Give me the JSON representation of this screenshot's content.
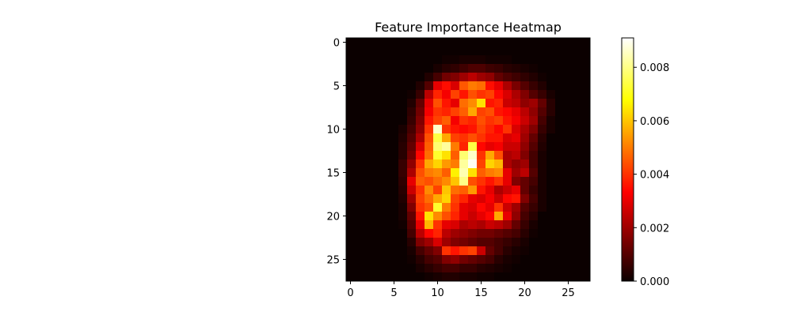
{
  "chart_data": {
    "type": "heatmap",
    "title": "Feature Importance Heatmap",
    "xlabel": "",
    "ylabel": "",
    "rows": 28,
    "cols": 28,
    "colormap": "hot",
    "x_ticks": [
      "0",
      "5",
      "10",
      "15",
      "20",
      "25"
    ],
    "y_ticks": [
      "0",
      "5",
      "10",
      "15",
      "20",
      "25"
    ],
    "colorbar": {
      "vmin": 0.0,
      "vmax": 0.0091,
      "ticks": [
        "0.000",
        "0.002",
        "0.004",
        "0.006",
        "0.008"
      ],
      "tick_values": [
        0.0,
        0.002,
        0.004,
        0.006,
        0.008
      ]
    },
    "values": [
      [
        0,
        0,
        0,
        0,
        0,
        0,
        0,
        0,
        0,
        0,
        0,
        0,
        0,
        0,
        0,
        0,
        0,
        0,
        0,
        0,
        0,
        0,
        0,
        0,
        0,
        0,
        0,
        0
      ],
      [
        0,
        0,
        0,
        0,
        0,
        0,
        0,
        0,
        0,
        0,
        0,
        0,
        0,
        0,
        0,
        0,
        0,
        0,
        0,
        0,
        0,
        0,
        0,
        0,
        0,
        0,
        0,
        0
      ],
      [
        0,
        0,
        0,
        0,
        0,
        0,
        0,
        0,
        0,
        0,
        0,
        0.0001,
        0.0001,
        0.0002,
        0.0002,
        0.0002,
        0.0001,
        0.0001,
        0.0001,
        0,
        0,
        0,
        0,
        0,
        0,
        0,
        0,
        0
      ],
      [
        0,
        0,
        0,
        0,
        0,
        0,
        0,
        0,
        0,
        0,
        0.0002,
        0.0004,
        0.0005,
        0.0007,
        0.0009,
        0.0009,
        0.0007,
        0.0006,
        0.0004,
        0.0003,
        0.0002,
        0.0001,
        0,
        0,
        0,
        0,
        0,
        0
      ],
      [
        0,
        0,
        0,
        0,
        0,
        0,
        0,
        0,
        0,
        0.0003,
        0.0008,
        0.0014,
        0.0016,
        0.002,
        0.0024,
        0.002,
        0.0018,
        0.0012,
        0.0009,
        0.0007,
        0.0005,
        0.0003,
        0.0001,
        0,
        0,
        0,
        0,
        0
      ],
      [
        0,
        0,
        0,
        0,
        0,
        0,
        0,
        0,
        0.0003,
        0.001,
        0.003,
        0.0035,
        0.0028,
        0.0045,
        0.005,
        0.0048,
        0.0035,
        0.003,
        0.0022,
        0.0015,
        0.001,
        0.0006,
        0.0003,
        0,
        0,
        0,
        0,
        0
      ],
      [
        0,
        0,
        0,
        0,
        0,
        0,
        0,
        0.0001,
        0.0006,
        0.0024,
        0.0038,
        0.0032,
        0.0042,
        0.0036,
        0.0044,
        0.004,
        0.0042,
        0.0034,
        0.0028,
        0.0022,
        0.0016,
        0.001,
        0.0006,
        0.0002,
        0,
        0,
        0,
        0
      ],
      [
        0,
        0,
        0,
        0,
        0,
        0,
        0,
        0.0003,
        0.0012,
        0.003,
        0.0044,
        0.0036,
        0.003,
        0.0048,
        0.0052,
        0.0064,
        0.0036,
        0.0038,
        0.0026,
        0.0024,
        0.0018,
        0.002,
        0.0012,
        0.0004,
        0,
        0,
        0,
        0
      ],
      [
        0,
        0,
        0,
        0,
        0,
        0,
        0,
        0.0005,
        0.0014,
        0.0032,
        0.004,
        0.0038,
        0.0042,
        0.0046,
        0.0056,
        0.0042,
        0.0044,
        0.0036,
        0.0034,
        0.003,
        0.0024,
        0.0018,
        0.001,
        0.0004,
        0,
        0,
        0,
        0
      ],
      [
        0,
        0,
        0,
        0,
        0,
        0,
        0,
        0.0006,
        0.0016,
        0.0036,
        0.0042,
        0.0046,
        0.0032,
        0.004,
        0.0038,
        0.0044,
        0.004,
        0.0042,
        0.0036,
        0.0032,
        0.0026,
        0.002,
        0.0008,
        0.0002,
        0,
        0,
        0,
        0
      ],
      [
        0,
        0,
        0,
        0,
        0,
        0,
        0.0002,
        0.0008,
        0.0018,
        0.004,
        0.0086,
        0.004,
        0.0036,
        0.0034,
        0.0036,
        0.0042,
        0.0038,
        0.0034,
        0.004,
        0.0028,
        0.0022,
        0.0016,
        0.0006,
        0.0002,
        0,
        0,
        0,
        0
      ],
      [
        0,
        0,
        0,
        0,
        0,
        0,
        0.0003,
        0.001,
        0.0022,
        0.0044,
        0.0074,
        0.0056,
        0.0042,
        0.004,
        0.0044,
        0.004,
        0.0036,
        0.0036,
        0.0028,
        0.003,
        0.002,
        0.0012,
        0.0004,
        0,
        0,
        0,
        0,
        0
      ],
      [
        0,
        0,
        0,
        0,
        0,
        0,
        0.0004,
        0.0012,
        0.0028,
        0.0046,
        0.0078,
        0.0082,
        0.005,
        0.0038,
        0.0074,
        0.0034,
        0.003,
        0.0032,
        0.0026,
        0.0026,
        0.0018,
        0.001,
        0.0003,
        0,
        0,
        0,
        0,
        0
      ],
      [
        0,
        0,
        0,
        0,
        0,
        0,
        0.0004,
        0.0014,
        0.0034,
        0.0048,
        0.0072,
        0.0064,
        0.0046,
        0.0078,
        0.0086,
        0.004,
        0.0056,
        0.0044,
        0.0022,
        0.0024,
        0.0016,
        0.0008,
        0.0002,
        0,
        0,
        0,
        0,
        0
      ],
      [
        0,
        0,
        0,
        0,
        0,
        0,
        0.0006,
        0.0018,
        0.004,
        0.0056,
        0.0062,
        0.0054,
        0.005,
        0.0082,
        0.009,
        0.0042,
        0.0062,
        0.0058,
        0.0022,
        0.0018,
        0.002,
        0.0008,
        0.0002,
        0,
        0,
        0,
        0,
        0
      ],
      [
        0,
        0,
        0,
        0,
        0,
        0,
        0.0006,
        0.0022,
        0.0044,
        0.005,
        0.0052,
        0.0046,
        0.0066,
        0.0084,
        0.0064,
        0.0046,
        0.005,
        0.0052,
        0.003,
        0.002,
        0.0024,
        0.001,
        0.0002,
        0,
        0,
        0,
        0,
        0
      ],
      [
        0,
        0,
        0,
        0,
        0,
        0,
        0.0005,
        0.003,
        0.0046,
        0.0044,
        0.0048,
        0.0052,
        0.006,
        0.008,
        0.0044,
        0.004,
        0.0036,
        0.004,
        0.003,
        0.0016,
        0.0012,
        0.0008,
        0.0002,
        0,
        0,
        0,
        0,
        0
      ],
      [
        0,
        0,
        0,
        0,
        0,
        0,
        0.0004,
        0.0026,
        0.004,
        0.0052,
        0.0042,
        0.006,
        0.0048,
        0.0046,
        0.0054,
        0.0036,
        0.003,
        0.0022,
        0.0026,
        0.003,
        0.0012,
        0.0006,
        0.0002,
        0,
        0,
        0,
        0,
        0
      ],
      [
        0,
        0,
        0,
        0,
        0,
        0,
        0.0003,
        0.002,
        0.0042,
        0.0048,
        0.0056,
        0.0062,
        0.0042,
        0.0038,
        0.003,
        0.0028,
        0.0032,
        0.0026,
        0.0034,
        0.0036,
        0.0016,
        0.0008,
        0.0002,
        0,
        0,
        0,
        0,
        0
      ],
      [
        0,
        0,
        0,
        0,
        0,
        0,
        0.0002,
        0.0016,
        0.004,
        0.0044,
        0.0072,
        0.005,
        0.004,
        0.003,
        0.0028,
        0.0034,
        0.003,
        0.004,
        0.0026,
        0.002,
        0.001,
        0.0006,
        0.0002,
        0,
        0,
        0,
        0,
        0
      ],
      [
        0,
        0,
        0,
        0,
        0,
        0,
        0.0002,
        0.0012,
        0.0036,
        0.0064,
        0.0052,
        0.0044,
        0.0038,
        0.003,
        0.0026,
        0.003,
        0.0034,
        0.0056,
        0.003,
        0.0018,
        0.0008,
        0.0004,
        0,
        0,
        0,
        0,
        0,
        0
      ],
      [
        0,
        0,
        0,
        0,
        0,
        0,
        0.0001,
        0.001,
        0.003,
        0.0058,
        0.004,
        0.003,
        0.0028,
        0.0022,
        0.0024,
        0.0022,
        0.0026,
        0.0024,
        0.002,
        0.0012,
        0.0006,
        0.0002,
        0,
        0,
        0,
        0,
        0,
        0
      ],
      [
        0,
        0,
        0,
        0,
        0,
        0,
        0,
        0.0008,
        0.0024,
        0.0034,
        0.0038,
        0.0024,
        0.002,
        0.0018,
        0.0016,
        0.0014,
        0.0014,
        0.0012,
        0.001,
        0.0008,
        0.0004,
        0.0001,
        0,
        0,
        0,
        0,
        0,
        0
      ],
      [
        0,
        0,
        0,
        0,
        0,
        0,
        0,
        0.0004,
        0.0016,
        0.002,
        0.0028,
        0.002,
        0.0016,
        0.0014,
        0.0012,
        0.001,
        0.001,
        0.0008,
        0.0006,
        0.0004,
        0.0002,
        0,
        0,
        0,
        0,
        0,
        0,
        0
      ],
      [
        0,
        0,
        0,
        0,
        0,
        0,
        0,
        0.0002,
        0.0008,
        0.0012,
        0.0016,
        0.004,
        0.0036,
        0.004,
        0.0042,
        0.0026,
        0.0012,
        0.0008,
        0.0004,
        0.0002,
        0.0001,
        0,
        0,
        0,
        0,
        0,
        0,
        0
      ],
      [
        0,
        0,
        0,
        0,
        0,
        0,
        0,
        0.0001,
        0.0004,
        0.0008,
        0.001,
        0.0016,
        0.0018,
        0.0014,
        0.0012,
        0.001,
        0.0008,
        0.0004,
        0.0002,
        0.0001,
        0,
        0,
        0,
        0,
        0,
        0,
        0,
        0
      ],
      [
        0,
        0,
        0,
        0,
        0,
        0,
        0,
        0,
        0.0002,
        0.0004,
        0.0006,
        0.0008,
        0.0008,
        0.0006,
        0.0006,
        0.0004,
        0.0003,
        0.0002,
        0.0001,
        0,
        0,
        0,
        0,
        0,
        0,
        0,
        0,
        0
      ],
      [
        0,
        0,
        0,
        0,
        0,
        0,
        0,
        0,
        0,
        0.0001,
        0.0002,
        0.0003,
        0.0003,
        0.0002,
        0.0002,
        0.0001,
        0.0001,
        0,
        0,
        0,
        0,
        0,
        0,
        0,
        0,
        0,
        0,
        0
      ]
    ]
  }
}
